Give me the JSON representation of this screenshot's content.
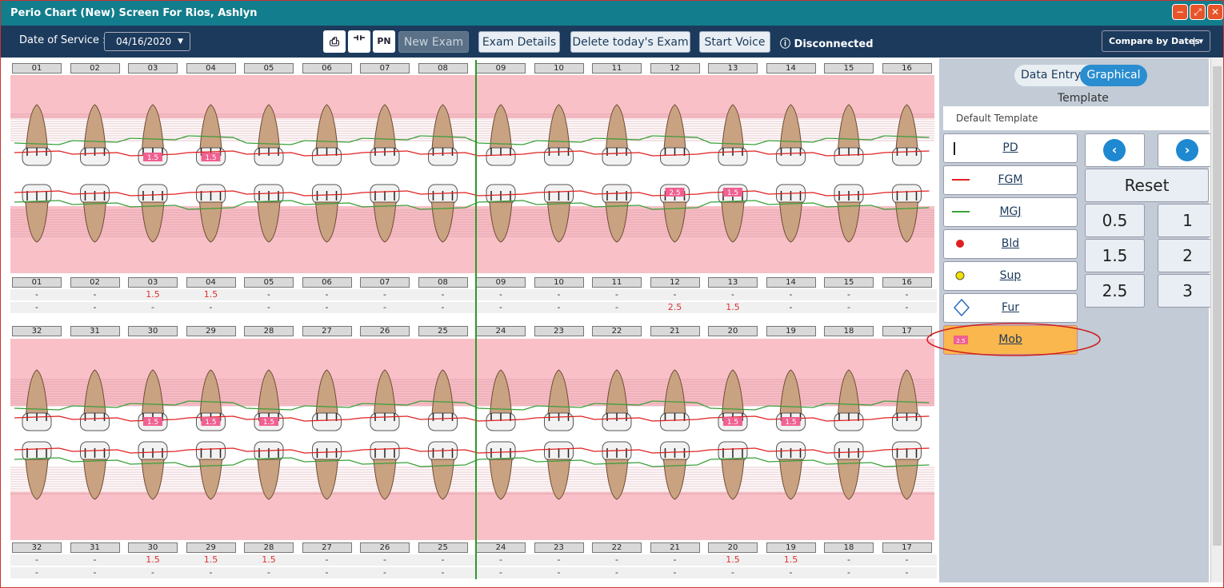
{
  "window": {
    "title": "Perio Chart (New) Screen For Rios, Ashlyn",
    "buttons": [
      "−",
      "⤢",
      "✕"
    ]
  },
  "toolbar": {
    "date_label": "Date of Service :",
    "date_value": "04/16/2020",
    "tool_icons": [
      "print-icon",
      "tooth-icon",
      "pn-note-icon"
    ],
    "tool_glyphs": [
      "⎙",
      "⻀",
      "PN"
    ],
    "new_exam": "New Exam",
    "exam_details": "Exam Details",
    "delete_exam": "Delete today's Exam",
    "start_voice": "Start Voice",
    "status": "Disconnected",
    "compare": "Compare by Dates"
  },
  "upper": {
    "teeth": [
      "01",
      "02",
      "03",
      "04",
      "05",
      "06",
      "07",
      "08",
      "09",
      "10",
      "11",
      "12",
      "13",
      "14",
      "15",
      "16"
    ],
    "facial_mobility": [
      "-",
      "-",
      "1.5",
      "1.5",
      "-",
      "-",
      "-",
      "-",
      "-",
      "-",
      "-",
      "-",
      "-",
      "-",
      "-",
      "-"
    ],
    "lingual_mobility": [
      "-",
      "-",
      "-",
      "-",
      "-",
      "-",
      "-",
      "-",
      "-",
      "-",
      "-",
      "2.5",
      "1.5",
      "-",
      "-",
      "-"
    ]
  },
  "lower": {
    "teeth": [
      "32",
      "31",
      "30",
      "29",
      "28",
      "27",
      "26",
      "25",
      "24",
      "23",
      "22",
      "21",
      "20",
      "19",
      "18",
      "17"
    ],
    "facial_mobility": [
      "-",
      "-",
      "1.5",
      "1.5",
      "1.5",
      "-",
      "-",
      "-",
      "-",
      "-",
      "-",
      "-",
      "1.5",
      "1.5",
      "-",
      "-"
    ],
    "lingual_mobility": [
      "-",
      "-",
      "-",
      "-",
      "-",
      "-",
      "-",
      "-",
      "-",
      "-",
      "-",
      "-",
      "-",
      "-",
      "-",
      "-"
    ]
  },
  "right_panel": {
    "mode_options": [
      "Data Entry",
      "Graphical"
    ],
    "template_label": "Template",
    "template_value": "Default Template",
    "legend": [
      "PD",
      "FGM",
      "MGJ",
      "Bld",
      "Sup",
      "Fur",
      "Mob"
    ],
    "mob_swatch": "2.5",
    "reset": "Reset",
    "values": [
      "0.5",
      "1",
      "1.5",
      "2",
      "2.5",
      "3"
    ],
    "prev_icon": "chevron-left-icon",
    "next_icon": "chevron-right-icon",
    "colors": {
      "pd": "#222",
      "fgm": "#e02020",
      "mgj": "#3aa03a",
      "bld": "#e02020",
      "sup": "#f2e000",
      "mob": "#f06090"
    }
  }
}
